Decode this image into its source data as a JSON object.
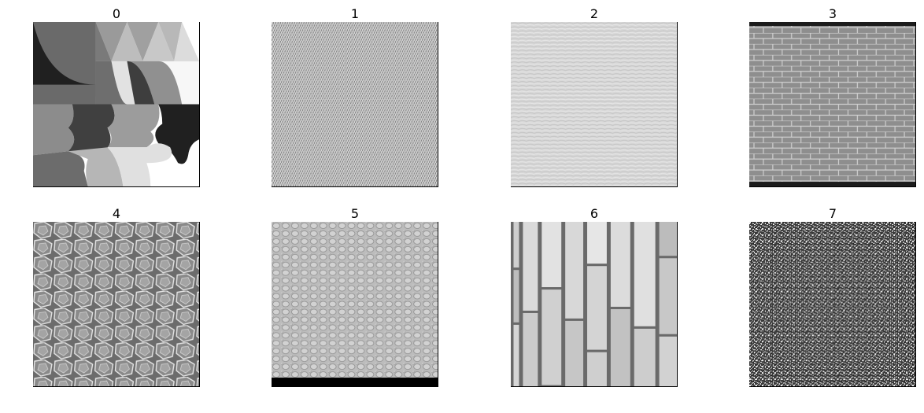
{
  "panels": [
    {
      "title": "0",
      "texture": "segmented-mosaic-texture"
    },
    {
      "title": "1",
      "texture": "woven-fabric-texture"
    },
    {
      "title": "2",
      "texture": "fine-grain-texture"
    },
    {
      "title": "3",
      "texture": "brick-grid-texture"
    },
    {
      "title": "4",
      "texture": "cellular-foam-texture"
    },
    {
      "title": "5",
      "texture": "pebbled-leather-texture"
    },
    {
      "title": "6",
      "texture": "paving-brick-texture"
    },
    {
      "title": "7",
      "texture": "speckle-noise-texture"
    }
  ],
  "colors": {
    "background": "#ffffff",
    "frame": "#000000"
  }
}
